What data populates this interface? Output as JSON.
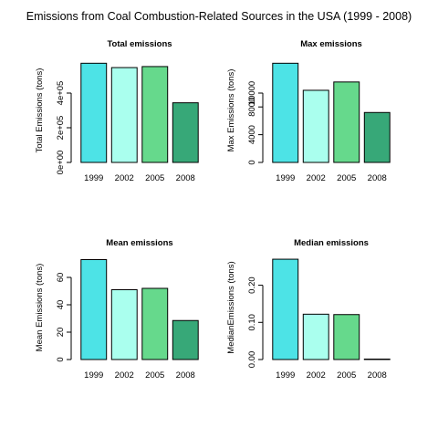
{
  "figure": {
    "title": "Emissions from Coal Combustion-Related Sources in the USA (1999 - 2008)"
  },
  "colors": {
    "bars": [
      "#4de3e6",
      "#aaffee",
      "#66d98c",
      "#37a878"
    ],
    "axis": "#000000"
  },
  "chart_data": [
    {
      "type": "bar",
      "title": "Total emissions",
      "ylabel": "Total Emissions (tons)",
      "categories": [
        "1999",
        "2002",
        "2005",
        "2008"
      ],
      "values": [
        572000,
        547000,
        553000,
        344000
      ],
      "ylim": [
        0,
        600000
      ],
      "yticks": [
        0,
        200000,
        400000
      ],
      "ytick_labels": [
        "0e+00",
        "2e+05",
        "4e+05"
      ],
      "grid": false
    },
    {
      "type": "bar",
      "title": "Max emissions",
      "ylabel": "Max Emissions (tons)",
      "categories": [
        "1999",
        "2002",
        "2005",
        "2008"
      ],
      "values": [
        14300,
        10400,
        11600,
        7200
      ],
      "ylim": [
        0,
        15000
      ],
      "yticks": [
        0,
        4000,
        8000,
        10000
      ],
      "ytick_labels": [
        "0",
        "4000",
        "8000",
        "10000"
      ],
      "grid": false
    },
    {
      "type": "bar",
      "title": "Mean emissions",
      "ylabel": "Mean Emissions (tons)",
      "categories": [
        "1999",
        "2002",
        "2005",
        "2008"
      ],
      "values": [
        73,
        51,
        52,
        28.5
      ],
      "ylim": [
        0,
        76
      ],
      "yticks": [
        0,
        20,
        40,
        60
      ],
      "ytick_labels": [
        "0",
        "20",
        "40",
        "60"
      ],
      "grid": false
    },
    {
      "type": "bar",
      "title": "Median emissions",
      "ylabel": "MedianEmissions (tons)",
      "categories": [
        "1999",
        "2002",
        "2005",
        "2008"
      ],
      "values": [
        0.27,
        0.122,
        0.121,
        0.001
      ],
      "ylim": [
        0,
        0.28
      ],
      "yticks": [
        0,
        0.1,
        0.2
      ],
      "ytick_labels": [
        "0.00",
        "0.10",
        "0.20"
      ],
      "grid": false
    }
  ]
}
